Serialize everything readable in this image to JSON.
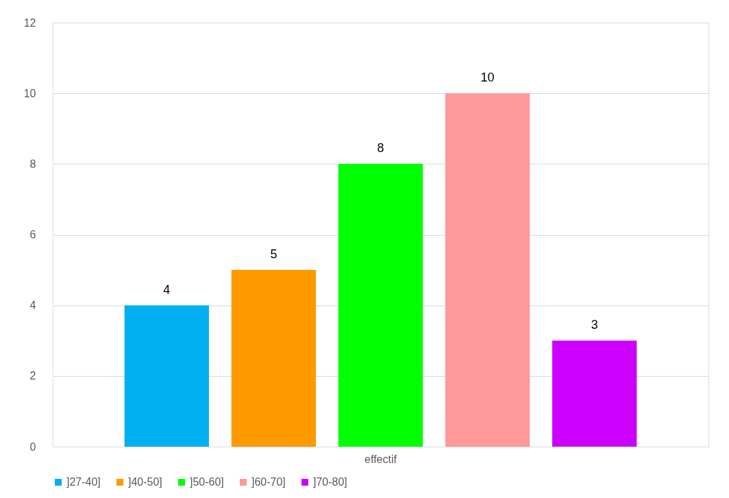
{
  "chart_data": {
    "type": "bar",
    "categories": [
      "effectif"
    ],
    "series": [
      {
        "name": "]27-40]",
        "color": "#00b0f0",
        "values": [
          4
        ]
      },
      {
        "name": "]40-50]",
        "color": "#ff9900",
        "values": [
          5
        ]
      },
      {
        "name": "]50-60]",
        "color": "#00ff00",
        "values": [
          8
        ]
      },
      {
        "name": "]60-70]",
        "color": "#ff9999",
        "values": [
          10
        ]
      },
      {
        "name": "]70-80]",
        "color": "#cc00ff",
        "values": [
          3
        ]
      }
    ],
    "ylim": [
      0,
      12
    ],
    "yticks": [
      0,
      2,
      4,
      6,
      8,
      10,
      12
    ],
    "grid": "y",
    "legend": "bottom",
    "data_labels": true
  }
}
